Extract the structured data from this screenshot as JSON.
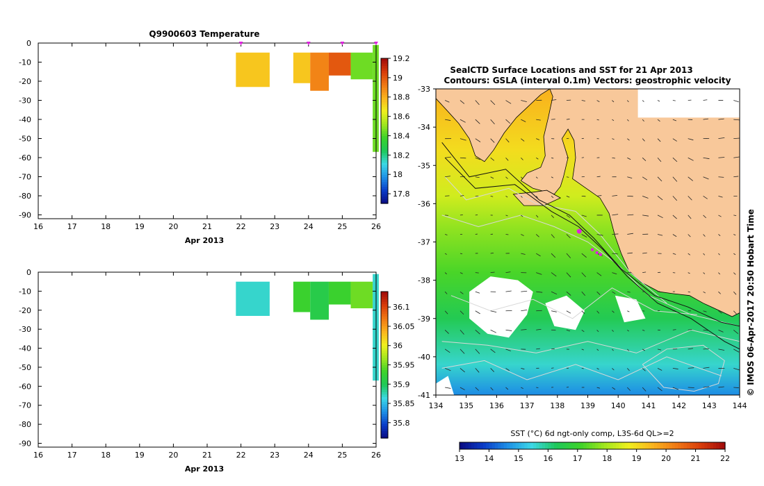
{
  "chart_data": [
    {
      "type": "heatmap",
      "title": "Q9900603  Temperature",
      "xlabel": "Apr 2013",
      "ylabel": "",
      "xlim": [
        16,
        26
      ],
      "ylim": [
        -92,
        0
      ],
      "xticks": [
        16,
        17,
        18,
        19,
        20,
        21,
        22,
        23,
        24,
        25,
        26
      ],
      "yticks": [
        0,
        -10,
        -20,
        -30,
        -40,
        -50,
        -60,
        -70,
        -80,
        -90
      ],
      "profile_markers": [
        22,
        24,
        25,
        26
      ],
      "cells": [
        {
          "x0": 21.85,
          "x1": 22.85,
          "y0": -5,
          "y1": -23,
          "value": 18.75
        },
        {
          "x0": 23.55,
          "x1": 24.05,
          "y0": -5,
          "y1": -21,
          "value": 18.75
        },
        {
          "x0": 24.05,
          "x1": 24.6,
          "y0": -5,
          "y1": -25,
          "value": 18.9
        },
        {
          "x0": 24.6,
          "x1": 25.25,
          "y0": -5,
          "y1": -17,
          "value": 19.0
        },
        {
          "x0": 25.25,
          "x1": 25.9,
          "y0": -5,
          "y1": -19,
          "value": 18.45
        },
        {
          "x0": 25.9,
          "x1": 26.08,
          "y0": -1,
          "y1": -57,
          "value": 18.45
        }
      ],
      "colorbar": {
        "min": 17.7,
        "max": 19.2,
        "ticks": [
          19.2,
          19,
          18.8,
          18.6,
          18.4,
          18.2,
          18,
          17.8
        ]
      }
    },
    {
      "type": "heatmap",
      "title": "",
      "xlabel": "Apr 2013",
      "ylabel": "",
      "xlim": [
        16,
        26
      ],
      "ylim": [
        -92,
        0
      ],
      "xticks": [
        16,
        17,
        18,
        19,
        20,
        21,
        22,
        23,
        24,
        25,
        26
      ],
      "yticks": [
        0,
        -10,
        -20,
        -30,
        -40,
        -50,
        -60,
        -70,
        -80,
        -90
      ],
      "cells": [
        {
          "x0": 21.85,
          "x1": 22.85,
          "y0": -5,
          "y1": -23,
          "value": 35.87
        },
        {
          "x0": 23.55,
          "x1": 24.05,
          "y0": -5,
          "y1": -21,
          "value": 35.93
        },
        {
          "x0": 24.05,
          "x1": 24.6,
          "y0": -5,
          "y1": -25,
          "value": 35.91
        },
        {
          "x0": 24.6,
          "x1": 25.25,
          "y0": -5,
          "y1": -17,
          "value": 35.93
        },
        {
          "x0": 25.25,
          "x1": 25.9,
          "y0": -5,
          "y1": -19,
          "value": 35.95
        },
        {
          "x0": 25.9,
          "x1": 26.08,
          "y0": -1,
          "y1": -57,
          "value": 35.87
        }
      ],
      "colorbar": {
        "min": 35.76,
        "max": 36.14,
        "ticks": [
          36.1,
          36.05,
          36,
          35.95,
          35.9,
          35.85,
          35.8
        ]
      }
    },
    {
      "type": "heatmap",
      "title": "SealCTD Surface Locations and SST for 21 Apr 2013",
      "subtitle": "Contours: GSLA (interval 0.1m) Vectors: geostrophic velocity",
      "xlim": [
        134,
        144
      ],
      "ylim": [
        -41,
        -33
      ],
      "xticks": [
        134,
        135,
        136,
        137,
        138,
        139,
        140,
        141,
        142,
        143,
        144
      ],
      "yticks": [
        -33,
        -34,
        -35,
        -36,
        -37,
        -38,
        -39,
        -40,
        -41
      ],
      "seal_locations": [
        {
          "lon": 138.72,
          "lat": -36.72
        },
        {
          "lon": 139.15,
          "lat": -37.2
        },
        {
          "lon": 139.3,
          "lat": -37.28
        },
        {
          "lon": 139.42,
          "lat": -37.33
        }
      ],
      "colorbar": {
        "label": "SST (°C) 6d ngt-only comp, L3S-6d QL>=2",
        "min": 13,
        "max": 22,
        "ticks": [
          13,
          14,
          15,
          16,
          17,
          18,
          19,
          20,
          21,
          22
        ]
      },
      "credit": "© IMOS 06-Apr-2017 20:50 Hobart Time"
    }
  ],
  "colors": {
    "land": "#f8c89a",
    "marker": "#e020e0",
    "contour": "#d8d8d8",
    "coast": "#000000",
    "palette": [
      "#0a0a80",
      "#0a3cc8",
      "#1e90e6",
      "#3cd8e6",
      "#1ec85a",
      "#3cd22a",
      "#a0e61e",
      "#f0f01e",
      "#fab41e",
      "#f07814",
      "#d83c0a",
      "#a00a0a"
    ]
  }
}
